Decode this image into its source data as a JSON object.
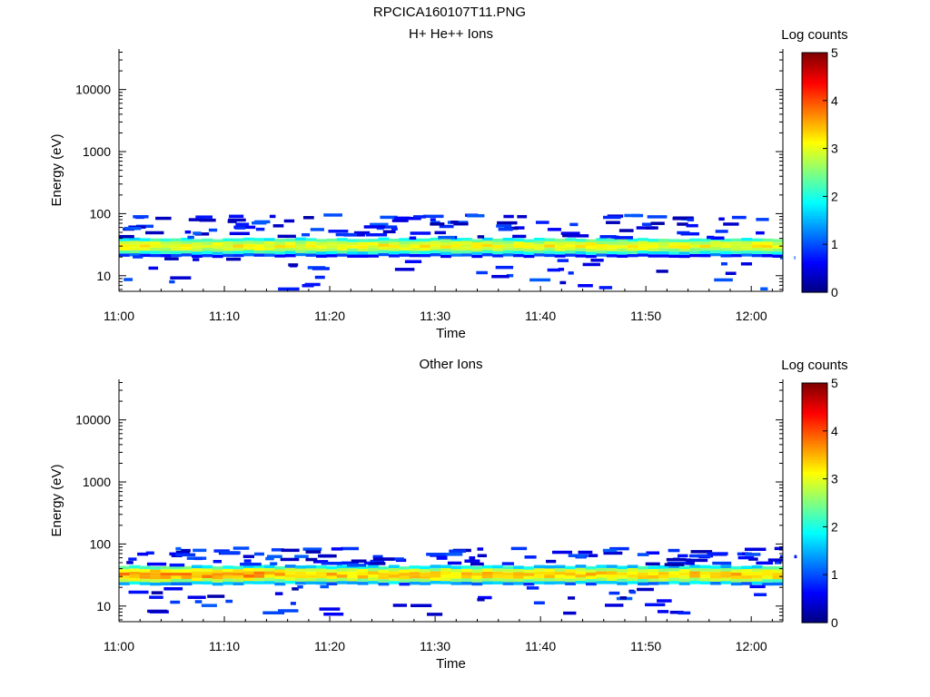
{
  "page": {
    "title": "RPCICA160107T11.PNG"
  },
  "colors": {
    "colormap": [
      "#00007f",
      "#0000ff",
      "#0080ff",
      "#00ffff",
      "#80ff80",
      "#ffff00",
      "#ff8000",
      "#ff0000",
      "#7f0000"
    ],
    "axes": "#000000",
    "background": "#ffffff"
  },
  "chart_data": [
    {
      "type": "heatmap",
      "title": "H+ He++ Ions",
      "xlabel": "Time",
      "ylabel": "Energy (eV)",
      "yscale": "log",
      "xlim": [
        "11:00",
        "12:03"
      ],
      "ylim": [
        5.6,
        45000
      ],
      "xticks": [
        "11:00",
        "11:10",
        "11:20",
        "11:30",
        "11:40",
        "11:50",
        "12:00"
      ],
      "yticks": [
        "10",
        "100",
        "1000",
        "10000"
      ],
      "colorbar": {
        "label": "Log counts",
        "range": [
          0,
          5
        ],
        "ticks": [
          "0",
          "1",
          "2",
          "3",
          "4",
          "5"
        ]
      },
      "band": {
        "energy_range_eV": [
          20,
          40
        ],
        "peak_energy_eV": 30,
        "peak_log_counts": 3.1,
        "scatter_range_eV": [
          6,
          95
        ]
      }
    },
    {
      "type": "heatmap",
      "title": "Other Ions",
      "xlabel": "Time",
      "ylabel": "Energy (eV)",
      "yscale": "log",
      "xlim": [
        "11:00",
        "12:03"
      ],
      "ylim": [
        5.6,
        45000
      ],
      "xticks": [
        "11:00",
        "11:10",
        "11:20",
        "11:30",
        "11:40",
        "11:50",
        "12:00"
      ],
      "yticks": [
        "10",
        "100",
        "1000",
        "10000"
      ],
      "colorbar": {
        "label": "Log counts",
        "range": [
          0,
          5
        ],
        "ticks": [
          "0",
          "1",
          "2",
          "3",
          "4",
          "5"
        ]
      },
      "band": {
        "energy_range_eV": [
          22,
          45
        ],
        "peak_energy_eV": 32,
        "peak_log_counts": 3.4,
        "scatter_range_eV": [
          7,
          85
        ]
      }
    }
  ]
}
